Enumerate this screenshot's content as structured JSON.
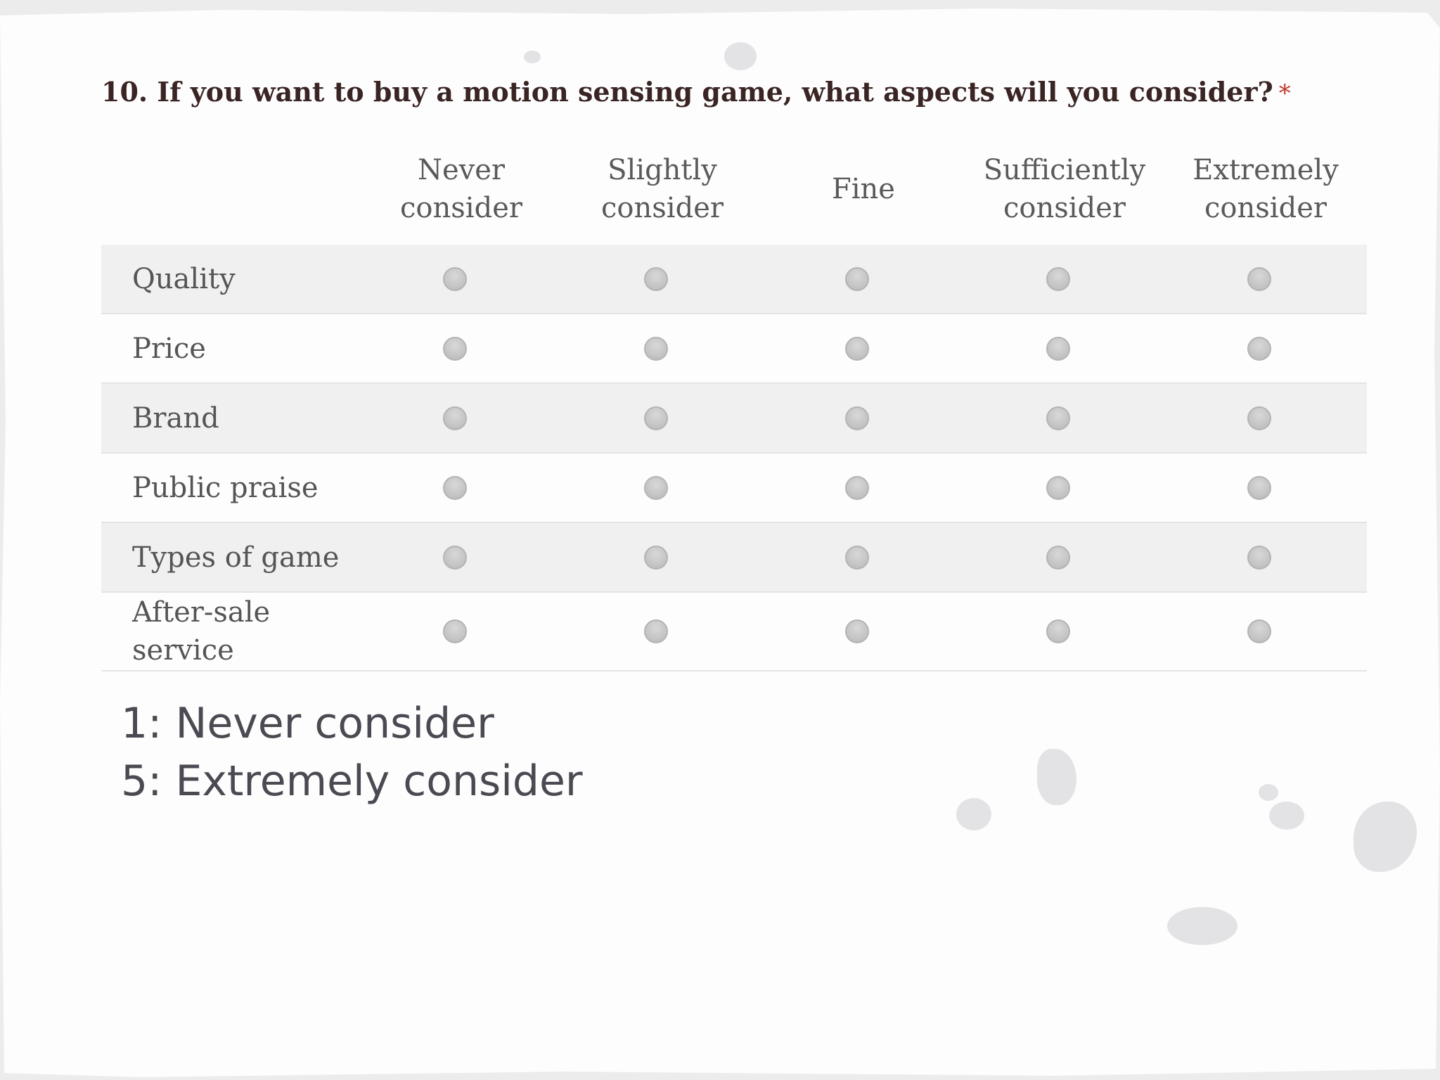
{
  "question": {
    "text": "10. If you want to buy a motion sensing game, what aspects will you consider?",
    "required_mark": "*"
  },
  "columns": [
    "Never\nconsider",
    "Slightly\nconsider",
    "Fine",
    "Sufficiently\nconsider",
    "Extremely\nconsider"
  ],
  "rows": [
    "Quality",
    "Price",
    "Brand",
    "Public praise",
    "Types of game",
    "After-sale\nservice"
  ],
  "legend": {
    "line1": "1: Never consider",
    "line2": "5: Extremely consider"
  }
}
